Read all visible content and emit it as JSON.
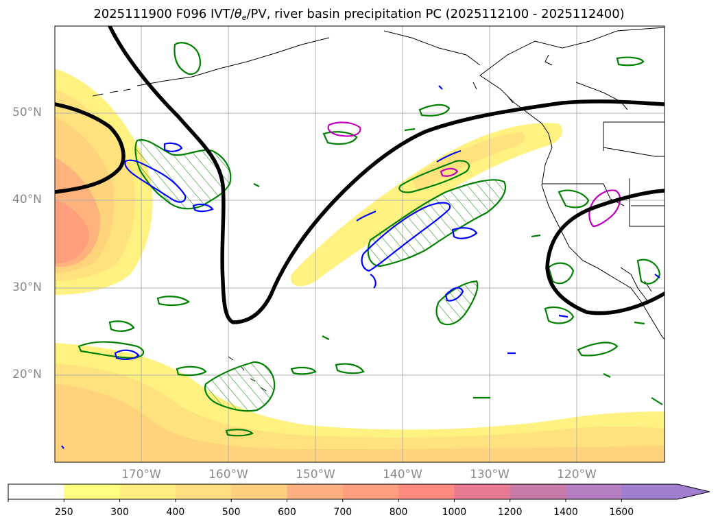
{
  "title": {
    "prefix": "2025111900 F096 IVT/",
    "theta": "θ",
    "theta_sub": "e",
    "suffix": "/PV, river basin precipitation PC (2025112100 - 2025112400)"
  },
  "axes": {
    "lat_labels": [
      "50°N",
      "40°N",
      "30°N",
      "20°N"
    ],
    "lon_labels": [
      "170°W",
      "160°W",
      "150°W",
      "140°W",
      "130°W",
      "120°W"
    ]
  },
  "colorbar": {
    "ticks": [
      "250",
      "300",
      "400",
      "500",
      "600",
      "700",
      "800",
      "1000",
      "1200",
      "1400",
      "1600"
    ],
    "colors": [
      "#ffffff",
      "#ffff80",
      "#ffef80",
      "#ffdf80",
      "#ffcf80",
      "#ffaf80",
      "#ff9f80",
      "#ff8a80",
      "#e77a90",
      "#c77aa8",
      "#b47ec0",
      "#a07ed0"
    ],
    "extend": "max"
  },
  "colors": {
    "ivt_contour": "#000000",
    "precip_green": "#008000",
    "precip_blue": "#0000ff",
    "precip_magenta": "#c000c0",
    "coast": "#000000",
    "grid": "#b0b0b0"
  }
}
